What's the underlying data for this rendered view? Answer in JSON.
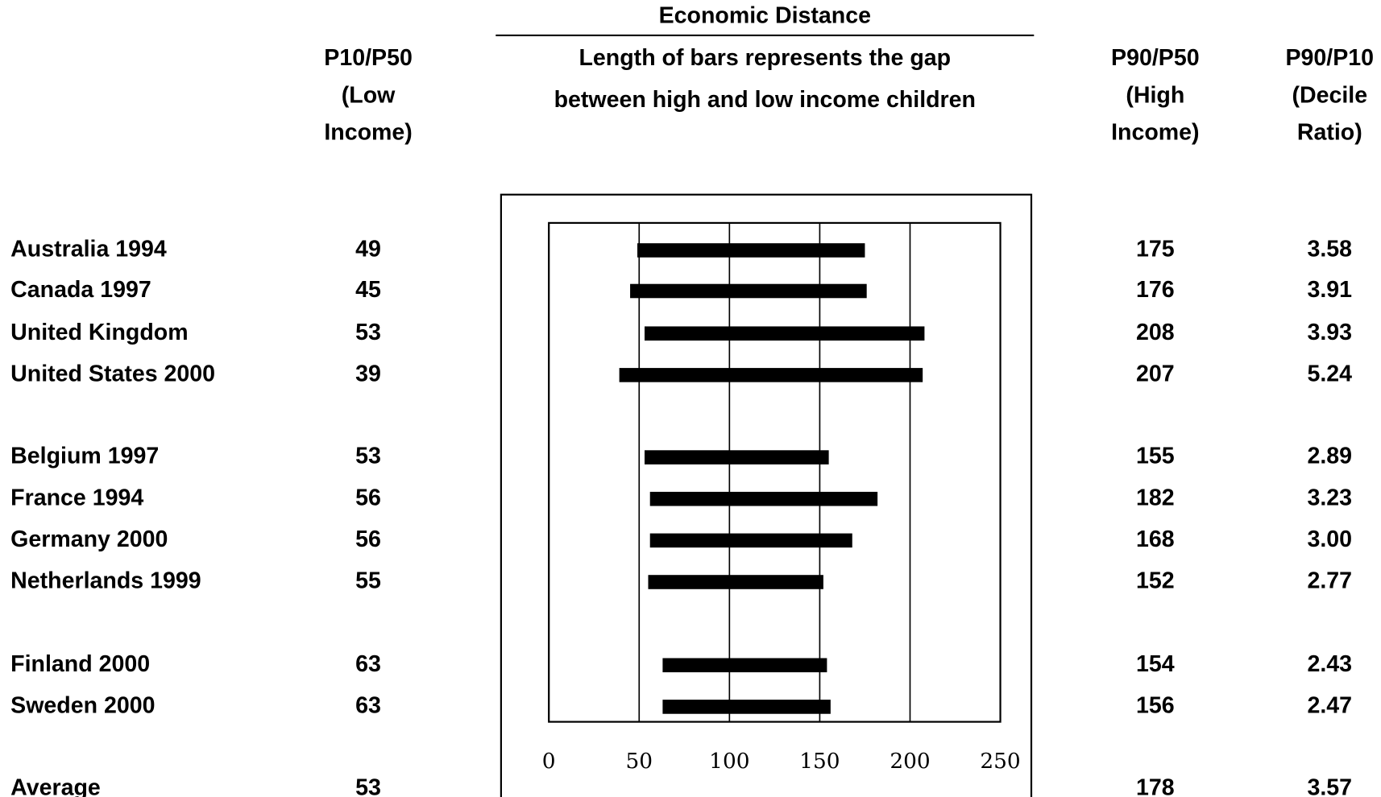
{
  "chart_data": {
    "type": "range-bar",
    "title": "Economic Distance",
    "subtitle": [
      "Length of bars represents the gap",
      "between high and low income children"
    ],
    "columns": {
      "low": [
        "P10/P50",
        "(Low",
        "Income)"
      ],
      "high": [
        "P90/P50",
        "(High",
        "Income)"
      ],
      "ratio": [
        "P90/P10",
        "(Decile",
        "Ratio)"
      ]
    },
    "categories": [
      "Australia 1994",
      "Canada 1997",
      "United Kingdom",
      "United States 2000",
      "Belgium 1997",
      "France 1994",
      "Germany 2000",
      "Netherlands 1999",
      "Finland 2000",
      "Sweden 2000"
    ],
    "low": [
      49,
      45,
      53,
      39,
      53,
      56,
      56,
      55,
      63,
      63
    ],
    "high": [
      175,
      176,
      208,
      207,
      155,
      182,
      168,
      152,
      154,
      156
    ],
    "ratio": [
      3.58,
      3.91,
      3.93,
      5.24,
      2.89,
      3.23,
      3.0,
      2.77,
      2.43,
      2.47
    ],
    "ratio_labels": [
      "3.58",
      "3.91",
      "3.93",
      "5.24",
      "2.89",
      "3.23",
      "3.00",
      "2.77",
      "2.43",
      "2.47"
    ],
    "average": {
      "label": "Average",
      "low": 53,
      "high": 178,
      "ratio": 3.57
    },
    "color": "#000000",
    "xlim": [
      0,
      250
    ],
    "xticks": [
      0,
      50,
      100,
      150,
      200,
      250
    ],
    "grid": true
  }
}
